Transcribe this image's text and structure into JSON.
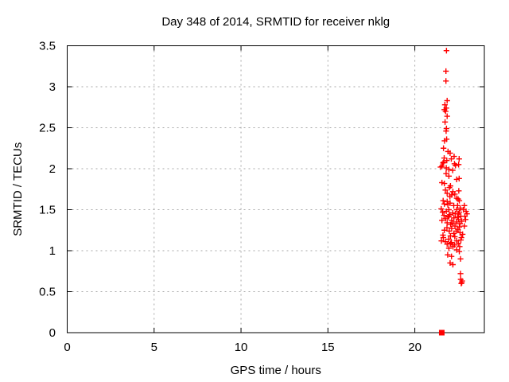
{
  "colors": {
    "marker": "#ff0000",
    "grid": "#a6a6a6",
    "axis": "#000000",
    "background": "#ffffff",
    "text": "#000000"
  },
  "chart_data": {
    "type": "scatter",
    "title": "Day 348 of 2014, SRMTID for receiver nklg",
    "xlabel": "GPS time / hours",
    "ylabel": "SRMTID / TECUs",
    "xlim": [
      0,
      24
    ],
    "ylim": [
      0,
      3.5
    ],
    "xticks": {
      "values": [
        0,
        5,
        10,
        15,
        20
      ],
      "labels": [
        "0",
        "5",
        "10",
        "15",
        "20"
      ]
    },
    "yticks": {
      "values": [
        0,
        0.5,
        1,
        1.5,
        2,
        2.5,
        3,
        3.5
      ],
      "labels": [
        "0",
        "0.5",
        "1",
        "1.5",
        "2",
        "2.5",
        "3",
        "3.5"
      ]
    },
    "grid": true,
    "legend": "none",
    "series": [
      {
        "name": "SRMTID",
        "marker": "plus",
        "color": "#ff0000",
        "points": [
          [
            21.82,
            3.44
          ],
          [
            21.79,
            3.19
          ],
          [
            21.79,
            3.07
          ],
          [
            21.86,
            2.83
          ],
          [
            21.73,
            2.78
          ],
          [
            21.81,
            2.74
          ],
          [
            21.7,
            2.72
          ],
          [
            21.77,
            2.7
          ],
          [
            21.86,
            2.64
          ],
          [
            21.74,
            2.57
          ],
          [
            21.82,
            2.49
          ],
          [
            21.8,
            2.46
          ],
          [
            21.83,
            2.36
          ],
          [
            21.71,
            2.34
          ],
          [
            21.65,
            2.25
          ],
          [
            21.91,
            2.21
          ],
          [
            22.03,
            2.19
          ],
          [
            22.26,
            2.15
          ],
          [
            21.69,
            2.13
          ],
          [
            22.55,
            2.12
          ],
          [
            22.1,
            2.12
          ],
          [
            21.84,
            2.1
          ],
          [
            21.66,
            2.08
          ],
          [
            21.62,
            2.07
          ],
          [
            22.28,
            2.06
          ],
          [
            22.52,
            2.05
          ],
          [
            22.34,
            2.04
          ],
          [
            21.56,
            2.03
          ],
          [
            21.48,
            2.02
          ],
          [
            21.81,
            2.01
          ],
          [
            21.96,
            1.99
          ],
          [
            22.18,
            1.98
          ],
          [
            21.8,
            1.94
          ],
          [
            21.96,
            1.91
          ],
          [
            22.55,
            1.88
          ],
          [
            22.41,
            1.87
          ],
          [
            21.56,
            1.83
          ],
          [
            21.7,
            1.82
          ],
          [
            22.05,
            1.79
          ],
          [
            21.99,
            1.77
          ],
          [
            21.76,
            1.74
          ],
          [
            22.53,
            1.73
          ],
          [
            22.19,
            1.72
          ],
          [
            21.86,
            1.7
          ],
          [
            22.3,
            1.69
          ],
          [
            22.12,
            1.68
          ],
          [
            22.02,
            1.66
          ],
          [
            22.41,
            1.64
          ],
          [
            22.49,
            1.63
          ],
          [
            21.63,
            1.61
          ],
          [
            22.56,
            1.61
          ],
          [
            21.86,
            1.6
          ],
          [
            22.03,
            1.58
          ],
          [
            21.7,
            1.57
          ],
          [
            21.9,
            1.56
          ],
          [
            22.24,
            1.55
          ],
          [
            22.46,
            1.55
          ],
          [
            22.85,
            1.55
          ],
          [
            22.61,
            1.52
          ],
          [
            21.52,
            1.51
          ],
          [
            21.96,
            1.5
          ],
          [
            22.41,
            1.5
          ],
          [
            22.8,
            1.5
          ],
          [
            21.81,
            1.48
          ],
          [
            22.95,
            1.48
          ],
          [
            21.6,
            1.47
          ],
          [
            22.56,
            1.47
          ],
          [
            22.18,
            1.46
          ],
          [
            22.33,
            1.45
          ],
          [
            22.5,
            1.45
          ],
          [
            23.0,
            1.45
          ],
          [
            22.02,
            1.44
          ],
          [
            21.68,
            1.43
          ],
          [
            21.96,
            1.42
          ],
          [
            22.65,
            1.42
          ],
          [
            22.88,
            1.42
          ],
          [
            21.9,
            1.41
          ],
          [
            22.46,
            1.41
          ],
          [
            22.25,
            1.4
          ],
          [
            21.77,
            1.39
          ],
          [
            22.51,
            1.38
          ],
          [
            22.92,
            1.38
          ],
          [
            21.56,
            1.37
          ],
          [
            22.12,
            1.37
          ],
          [
            22.7,
            1.36
          ],
          [
            22.4,
            1.35
          ],
          [
            21.86,
            1.34
          ],
          [
            22.2,
            1.33
          ],
          [
            22.6,
            1.33
          ],
          [
            22.06,
            1.32
          ],
          [
            22.31,
            1.3
          ],
          [
            22.85,
            1.3
          ],
          [
            22.56,
            1.29
          ],
          [
            21.85,
            1.28
          ],
          [
            22.12,
            1.27
          ],
          [
            22.48,
            1.26
          ],
          [
            21.7,
            1.25
          ],
          [
            21.98,
            1.24
          ],
          [
            22.38,
            1.24
          ],
          [
            22.6,
            1.22
          ],
          [
            22.25,
            1.21
          ],
          [
            22.75,
            1.2
          ],
          [
            21.62,
            1.19
          ],
          [
            22.05,
            1.18
          ],
          [
            22.3,
            1.17
          ],
          [
            21.64,
            1.16
          ],
          [
            22.68,
            1.16
          ],
          [
            21.95,
            1.14
          ],
          [
            22.65,
            1.13
          ],
          [
            21.53,
            1.12
          ],
          [
            22.41,
            1.12
          ],
          [
            21.76,
            1.11
          ],
          [
            22.11,
            1.1
          ],
          [
            22.5,
            1.09
          ],
          [
            22.06,
            1.09
          ],
          [
            21.86,
            1.08
          ],
          [
            22.28,
            1.07
          ],
          [
            22.19,
            1.05
          ],
          [
            22.58,
            1.05
          ],
          [
            21.96,
            1.03
          ],
          [
            22.41,
            1.01
          ],
          [
            22.56,
            0.99
          ],
          [
            21.89,
            0.95
          ],
          [
            22.11,
            0.93
          ],
          [
            22.63,
            0.9
          ],
          [
            22.03,
            0.85
          ],
          [
            22.19,
            0.83
          ],
          [
            22.63,
            0.72
          ],
          [
            22.64,
            0.65
          ],
          [
            22.72,
            0.63
          ],
          [
            22.7,
            0.61
          ],
          [
            22.67,
            0.6
          ]
        ]
      },
      {
        "name": "zero-values",
        "marker": "filled-square",
        "color": "#ff0000",
        "points": [
          [
            21.55,
            0
          ]
        ]
      }
    ]
  }
}
